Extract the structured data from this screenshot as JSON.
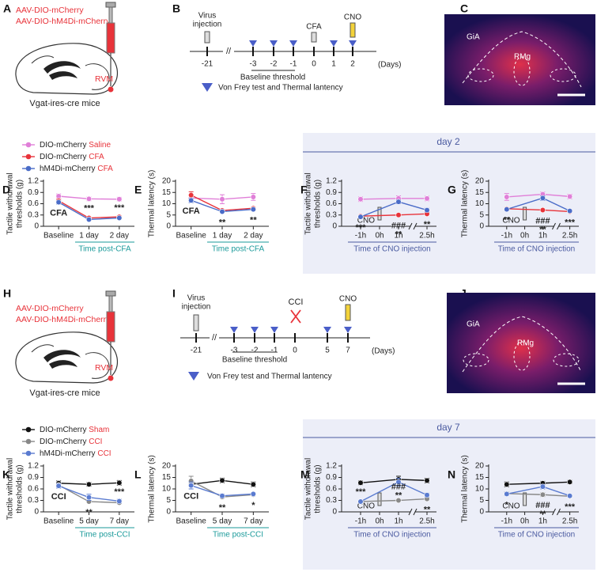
{
  "virus_panels": [
    {
      "label": "A",
      "viruses": [
        "AAV-DIO-mCherry",
        "AAV-DIO-hM4Di-mCherry"
      ],
      "region": "RVM",
      "mice": "Vgat-ires-cre mice"
    },
    {
      "label": "H",
      "viruses": [
        "AAV-DIO-mCherry",
        "AAV-DIO-hM4Di-mCherry"
      ],
      "region": "RVM",
      "mice": "Vgat-ires-cre mice"
    }
  ],
  "timelines": [
    {
      "label": "B",
      "virus": [
        "Virus",
        "injection"
      ],
      "days": [
        "-21",
        "-3",
        "-2",
        "-1",
        "0",
        "1",
        "2"
      ],
      "unit": "(Days)",
      "baseline": "Baseline threshold",
      "event": "CFA",
      "cno": "CNO",
      "legend": "Von Frey test and Thermal lantency"
    },
    {
      "label": "I",
      "virus": [
        "Virus",
        "injection"
      ],
      "days": [
        "-21",
        "-3",
        "-2",
        "-1",
        "0",
        "5",
        "7"
      ],
      "unit": "(Days)",
      "baseline": "Baseline threshold",
      "event": "CCI",
      "cno": "CNO",
      "legend": "Von Frey test and Thermal lantency"
    }
  ],
  "histology": [
    {
      "label": "C",
      "regions": [
        "GiA",
        "RMg"
      ]
    },
    {
      "label": "J",
      "regions": [
        "GiA",
        "RMg"
      ]
    }
  ],
  "bands": [
    "day 2",
    "day 7"
  ],
  "chart_data": [
    {
      "type": "line",
      "label": "D",
      "ylabel": [
        "Tactile withdrawal",
        "thresholds (g)"
      ],
      "xlabel": "Time post-CFA",
      "categories": [
        "Baseline",
        "1 day",
        "2 day"
      ],
      "ylim": [
        0,
        1.2
      ],
      "yticks": [
        0,
        0.3,
        0.6,
        0.9,
        1.2
      ],
      "annotations": [
        [
          "CFA"
        ],
        [
          "***"
        ],
        [
          "***"
        ]
      ],
      "series": [
        {
          "name": "DIO-mCherry",
          "treatment": "Saline",
          "color": "#e07fd8",
          "values": [
            0.8,
            0.73,
            0.72
          ],
          "errors": [
            0.06,
            0.05,
            0.05
          ]
        },
        {
          "name": "DIO-mCherry",
          "treatment": "CFA",
          "color": "#e8333a",
          "values": [
            0.68,
            0.22,
            0.25
          ],
          "errors": [
            0.05,
            0.03,
            0.03
          ]
        },
        {
          "name": "hM4Di-mCherry",
          "treatment": "CFA",
          "color": "#4a6cc8",
          "values": [
            0.64,
            0.18,
            0.22
          ],
          "errors": [
            0.05,
            0.03,
            0.03
          ]
        }
      ]
    },
    {
      "type": "line",
      "label": "E",
      "ylabel": [
        "Thermal latency (s)"
      ],
      "xlabel": "Time post-CFA",
      "categories": [
        "Baseline",
        "1 day",
        "2 day"
      ],
      "ylim": [
        0,
        20
      ],
      "yticks": [
        0,
        5,
        10,
        15,
        20
      ],
      "annotations": [
        [
          "CFA"
        ],
        [
          "**"
        ],
        [
          "**"
        ]
      ],
      "series": [
        {
          "color": "#e07fd8",
          "values": [
            12.5,
            12,
            13
          ],
          "errors": [
            1.5,
            2,
            1.5
          ]
        },
        {
          "color": "#e8333a",
          "values": [
            13.8,
            7,
            8
          ],
          "errors": [
            1.5,
            0.5,
            0.5
          ]
        },
        {
          "color": "#4a6cc8",
          "values": [
            11.5,
            6.5,
            7.5
          ],
          "errors": [
            1,
            0.5,
            0.5
          ]
        }
      ]
    },
    {
      "type": "line",
      "label": "F",
      "ylabel": [
        "Tactile withdrawal",
        "thresholds (g)"
      ],
      "xlabel": "Time of CNO injection",
      "injection": "CNO",
      "x": [
        -1,
        1,
        2.5
      ],
      "xlim": [
        -2,
        3
      ],
      "xticks": [
        {
          "value": -1,
          "label": "-1h"
        },
        {
          "value": 0,
          "label": "0h"
        },
        {
          "value": 1,
          "label": "1h"
        },
        {
          "value": 2.5,
          "label": "2.5h"
        }
      ],
      "ylim": [
        0,
        1.2
      ],
      "yticks": [
        0,
        0.3,
        0.6,
        0.9,
        1.2
      ],
      "annotations": [
        [
          "***"
        ],
        [
          "###",
          "**"
        ],
        [
          "**"
        ]
      ],
      "series": [
        {
          "color": "#e07fd8",
          "values": [
            0.72,
            0.74,
            0.74
          ],
          "errors": [
            0.06,
            0.07,
            0.06
          ]
        },
        {
          "color": "#e8333a",
          "values": [
            0.27,
            0.3,
            0.33
          ],
          "errors": [
            0.03,
            0.03,
            0.03
          ]
        },
        {
          "color": "#4a6cc8",
          "values": [
            0.25,
            0.65,
            0.43
          ],
          "errors": [
            0.03,
            0.05,
            0.05
          ]
        }
      ]
    },
    {
      "type": "line",
      "label": "G",
      "ylabel": [
        "Thermal latency (s)"
      ],
      "xlabel": "Time of CNO injection",
      "injection": "CNO",
      "x": [
        -1,
        1,
        2.5
      ],
      "xlim": [
        -2,
        3
      ],
      "xticks": [
        {
          "value": -1,
          "label": "-1h"
        },
        {
          "value": 0,
          "label": "0h"
        },
        {
          "value": 1,
          "label": "1h"
        },
        {
          "value": 2.5,
          "label": "2.5h"
        }
      ],
      "ylim": [
        0,
        20
      ],
      "yticks": [
        0,
        5,
        10,
        15,
        20
      ],
      "annotations": [
        [
          "**"
        ],
        [
          "###",
          "**"
        ],
        [
          "***"
        ]
      ],
      "series": [
        {
          "color": "#e07fd8",
          "values": [
            13,
            14.2,
            13.2
          ],
          "errors": [
            1.5,
            1,
            1
          ]
        },
        {
          "color": "#e8333a",
          "values": [
            7.8,
            7.2,
            6.5
          ],
          "errors": [
            0.5,
            0.5,
            0.5
          ]
        },
        {
          "color": "#4a6cc8",
          "values": [
            7.5,
            12.5,
            6.8
          ],
          "errors": [
            0.5,
            1,
            0.5
          ]
        }
      ]
    },
    {
      "type": "line",
      "label": "K",
      "ylabel": [
        "Tactile withdrawal",
        "thresholds (g)"
      ],
      "xlabel": "Time post-CCI",
      "categories": [
        "Baseline",
        "5 day",
        "7 day"
      ],
      "ylim": [
        0,
        1.2
      ],
      "yticks": [
        0,
        0.3,
        0.6,
        0.9,
        1.2
      ],
      "annotations": [
        [
          "CCI"
        ],
        [
          "**"
        ],
        [
          "***"
        ]
      ],
      "series": [
        {
          "name": "DIO-mCherry",
          "treatment": "Sham",
          "color": "#111111",
          "values": [
            0.75,
            0.72,
            0.76
          ],
          "errors": [
            0.06,
            0.05,
            0.06
          ]
        },
        {
          "name": "DIO-mCherry",
          "treatment": "CCI",
          "color": "#888888",
          "values": [
            0.7,
            0.27,
            0.24
          ],
          "errors": [
            0.05,
            0.03,
            0.03
          ]
        },
        {
          "name": "hM4Di-mCherry",
          "treatment": "CCI",
          "color": "#5a7bd0",
          "values": [
            0.68,
            0.38,
            0.28
          ],
          "errors": [
            0.06,
            0.08,
            0.05
          ]
        }
      ]
    },
    {
      "type": "line",
      "label": "L",
      "ylabel": [
        "Thermal latency (s)"
      ],
      "xlabel": "Time post-CCI",
      "categories": [
        "Baseline",
        "5 day",
        "7 day"
      ],
      "ylim": [
        0,
        20
      ],
      "yticks": [
        0,
        5,
        10,
        15,
        20
      ],
      "annotations": [
        [
          "CCI"
        ],
        [
          "**"
        ],
        [
          "*"
        ]
      ],
      "series": [
        {
          "color": "#111111",
          "values": [
            12,
            13.7,
            12
          ],
          "errors": [
            1,
            1,
            1
          ]
        },
        {
          "color": "#888888",
          "values": [
            13.5,
            6.5,
            7.5
          ],
          "errors": [
            2,
            0.5,
            0.5
          ]
        },
        {
          "color": "#5a7bd0",
          "values": [
            11.5,
            7,
            7.8
          ],
          "errors": [
            1.5,
            0.8,
            0.5
          ]
        }
      ]
    },
    {
      "type": "line",
      "label": "M",
      "ylabel": [
        "Tactile withdrawal",
        "thresholds (g)"
      ],
      "xlabel": "Time of CNO injection",
      "injection": "CNO",
      "x": [
        -1,
        1,
        2.5
      ],
      "xlim": [
        -2,
        3
      ],
      "xticks": [
        {
          "value": -1,
          "label": "-1h"
        },
        {
          "value": 0,
          "label": "0h"
        },
        {
          "value": 1,
          "label": "1h"
        },
        {
          "value": 2.5,
          "label": "2.5h"
        }
      ],
      "ylim": [
        0,
        1.2
      ],
      "yticks": [
        0,
        0.3,
        0.6,
        0.9,
        1.2
      ],
      "annotations": [
        [
          "***"
        ],
        [
          "###",
          "**"
        ],
        [
          "**"
        ]
      ],
      "series": [
        {
          "color": "#111111",
          "values": [
            0.76,
            0.85,
            0.82
          ],
          "errors": [
            0.05,
            0.08,
            0.06
          ]
        },
        {
          "color": "#888888",
          "values": [
            0.27,
            0.3,
            0.34
          ],
          "errors": [
            0.03,
            0.02,
            0.03
          ]
        },
        {
          "color": "#5a7bd0",
          "values": [
            0.27,
            0.78,
            0.44
          ],
          "errors": [
            0.03,
            0.1,
            0.05
          ]
        }
      ]
    },
    {
      "type": "line",
      "label": "N",
      "ylabel": [
        "Thermal latency (s)"
      ],
      "xlabel": "Time of CNO injection",
      "injection": "CNO",
      "x": [
        -1,
        1,
        2.5
      ],
      "xlim": [
        -2,
        3
      ],
      "xticks": [
        {
          "value": -1,
          "label": "-1h"
        },
        {
          "value": 0,
          "label": "0h"
        },
        {
          "value": 1,
          "label": "1h"
        },
        {
          "value": 2.5,
          "label": "2.5h"
        }
      ],
      "ylim": [
        0,
        20
      ],
      "yticks": [
        0,
        5,
        10,
        15,
        20
      ],
      "annotations": [
        [
          "*"
        ],
        [
          "###",
          "**"
        ],
        [
          "***"
        ]
      ],
      "series": [
        {
          "color": "#111111",
          "values": [
            12,
            12.5,
            13
          ],
          "errors": [
            1,
            0.8,
            0.7
          ]
        },
        {
          "color": "#888888",
          "values": [
            8,
            7.5,
            6.8
          ],
          "errors": [
            0.8,
            0.8,
            0.5
          ]
        },
        {
          "color": "#5a7bd0",
          "values": [
            7.8,
            11,
            7
          ],
          "errors": [
            0.7,
            1,
            0.5
          ]
        }
      ]
    }
  ]
}
